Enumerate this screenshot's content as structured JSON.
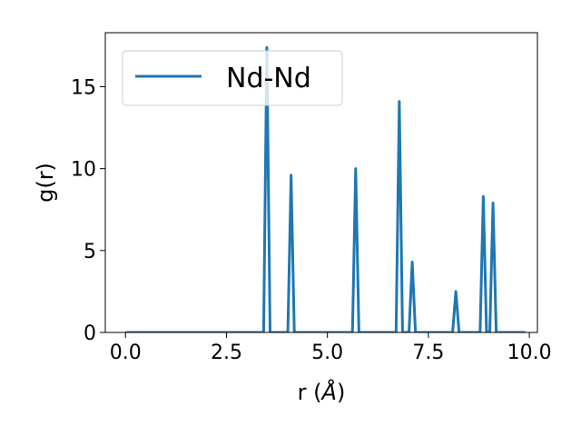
{
  "chart_data": {
    "type": "line",
    "title": "",
    "xlabel": "r (",
    "xlabel_symbol": "Å",
    "xlabel_close": ")",
    "ylabel": "g(r)",
    "xlim": [
      -0.5,
      10.2
    ],
    "ylim": [
      0,
      18.3
    ],
    "grid": false,
    "legend_position": "top-left",
    "x_ticks": [
      {
        "value": 0.0,
        "label": "0.0"
      },
      {
        "value": 2.5,
        "label": "2.5"
      },
      {
        "value": 5.0,
        "label": "5.0"
      },
      {
        "value": 7.5,
        "label": "7.5"
      },
      {
        "value": 10.0,
        "label": "10.0"
      }
    ],
    "y_ticks": [
      {
        "value": 0,
        "label": "0"
      },
      {
        "value": 5,
        "label": "5"
      },
      {
        "value": 10,
        "label": "10"
      },
      {
        "value": 15,
        "label": "15"
      }
    ],
    "series": [
      {
        "name": "Nd-Nd",
        "color": "#1f77b4",
        "x": [
          0.0,
          3.42,
          3.5,
          3.58,
          3.66,
          4.02,
          4.1,
          4.18,
          4.26,
          5.62,
          5.7,
          5.78,
          5.86,
          6.7,
          6.78,
          6.86,
          6.94,
          7.02,
          7.1,
          7.18,
          7.26,
          8.1,
          8.18,
          8.26,
          8.34,
          8.78,
          8.86,
          8.94,
          9.02,
          9.1,
          9.18,
          9.26,
          9.9
        ],
        "y": [
          0,
          0,
          17.4,
          0,
          0,
          0,
          9.6,
          0,
          0,
          0,
          10.0,
          0,
          0,
          0,
          14.1,
          0,
          0,
          0,
          4.3,
          0,
          0,
          0,
          2.5,
          0,
          0,
          0,
          8.3,
          0,
          0,
          7.9,
          0,
          0,
          0
        ]
      }
    ]
  }
}
